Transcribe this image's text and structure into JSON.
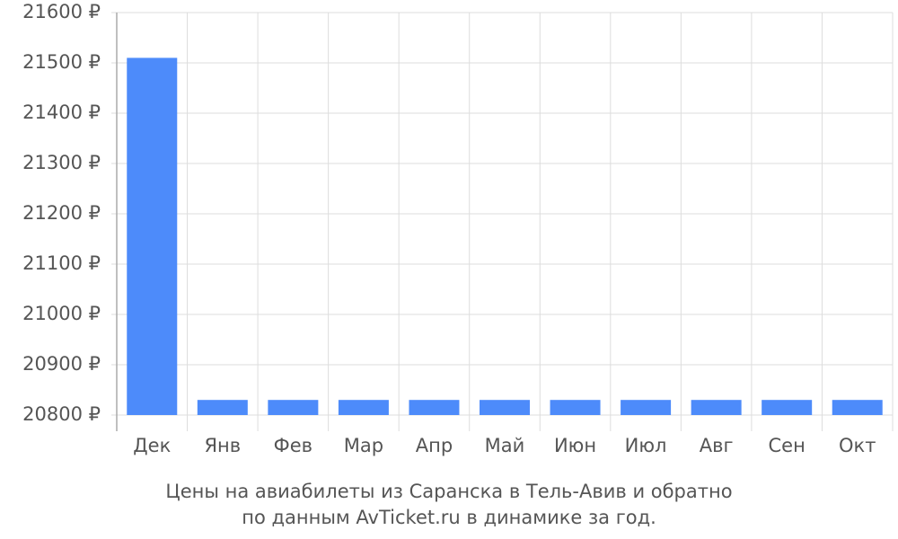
{
  "chart_data": {
    "type": "bar",
    "title": [
      "Цены на авиабилеты из Саранска в Тель-Авив и обратно",
      "по данным AvTicket.ru в динамике за год."
    ],
    "categories": [
      "Дек",
      "Янв",
      "Фев",
      "Мар",
      "Апр",
      "Май",
      "Июн",
      "Июл",
      "Авг",
      "Сен",
      "Окт"
    ],
    "values": [
      21510,
      20830,
      20830,
      20830,
      20830,
      20830,
      20830,
      20830,
      20830,
      20830,
      20830
    ],
    "color": "#4d8bfa",
    "ylim": [
      20800,
      21600
    ],
    "yticks": [
      {
        "value": 20800,
        "label": "20800 ₽"
      },
      {
        "value": 20900,
        "label": "20900 ₽"
      },
      {
        "value": 21000,
        "label": "21000 ₽"
      },
      {
        "value": 21100,
        "label": "21100 ₽"
      },
      {
        "value": 21200,
        "label": "21200 ₽"
      },
      {
        "value": 21300,
        "label": "21300 ₽"
      },
      {
        "value": 21400,
        "label": "21400 ₽"
      },
      {
        "value": 21500,
        "label": "21500 ₽"
      },
      {
        "value": 21600,
        "label": "21600 ₽"
      }
    ],
    "grid": true
  }
}
